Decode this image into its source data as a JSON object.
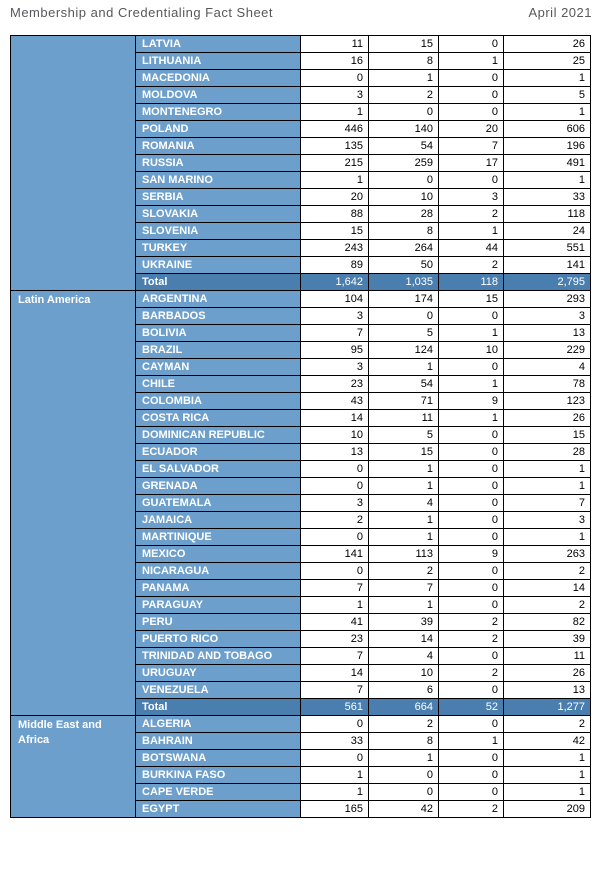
{
  "header": {
    "title": "Membership and Credentialing Fact Sheet",
    "date": "April 2021"
  },
  "colors": {
    "cell_blue": "#6D9FCC",
    "total_blue": "#4A7EAF",
    "title_gray": "#57585B"
  },
  "sections": [
    {
      "region": "",
      "rows": [
        {
          "country": "LATVIA",
          "values": [
            "11",
            "15",
            "0",
            "26"
          ]
        },
        {
          "country": "LITHUANIA",
          "values": [
            "16",
            "8",
            "1",
            "25"
          ]
        },
        {
          "country": "MACEDONIA",
          "values": [
            "0",
            "1",
            "0",
            "1"
          ]
        },
        {
          "country": "MOLDOVA",
          "values": [
            "3",
            "2",
            "0",
            "5"
          ]
        },
        {
          "country": "MONTENEGRO",
          "values": [
            "1",
            "0",
            "0",
            "1"
          ]
        },
        {
          "country": "POLAND",
          "values": [
            "446",
            "140",
            "20",
            "606"
          ]
        },
        {
          "country": "ROMANIA",
          "values": [
            "135",
            "54",
            "7",
            "196"
          ]
        },
        {
          "country": "RUSSIA",
          "values": [
            "215",
            "259",
            "17",
            "491"
          ]
        },
        {
          "country": "SAN MARINO",
          "values": [
            "1",
            "0",
            "0",
            "1"
          ]
        },
        {
          "country": "SERBIA",
          "values": [
            "20",
            "10",
            "3",
            "33"
          ]
        },
        {
          "country": "SLOVAKIA",
          "values": [
            "88",
            "28",
            "2",
            "118"
          ]
        },
        {
          "country": "SLOVENIA",
          "values": [
            "15",
            "8",
            "1",
            "24"
          ]
        },
        {
          "country": "TURKEY",
          "values": [
            "243",
            "264",
            "44",
            "551"
          ]
        },
        {
          "country": "UKRAINE",
          "values": [
            "89",
            "50",
            "2",
            "141"
          ]
        }
      ],
      "total": {
        "label": "Total",
        "values": [
          "1,642",
          "1,035",
          "118",
          "2,795"
        ]
      }
    },
    {
      "region": "Latin America",
      "rows": [
        {
          "country": "ARGENTINA",
          "values": [
            "104",
            "174",
            "15",
            "293"
          ]
        },
        {
          "country": "BARBADOS",
          "values": [
            "3",
            "0",
            "0",
            "3"
          ]
        },
        {
          "country": "BOLIVIA",
          "values": [
            "7",
            "5",
            "1",
            "13"
          ]
        },
        {
          "country": "BRAZIL",
          "values": [
            "95",
            "124",
            "10",
            "229"
          ]
        },
        {
          "country": "CAYMAN",
          "values": [
            "3",
            "1",
            "0",
            "4"
          ]
        },
        {
          "country": "CHILE",
          "values": [
            "23",
            "54",
            "1",
            "78"
          ]
        },
        {
          "country": "COLOMBIA",
          "values": [
            "43",
            "71",
            "9",
            "123"
          ]
        },
        {
          "country": "COSTA RICA",
          "values": [
            "14",
            "11",
            "1",
            "26"
          ]
        },
        {
          "country": "DOMINICAN REPUBLIC",
          "values": [
            "10",
            "5",
            "0",
            "15"
          ]
        },
        {
          "country": "ECUADOR",
          "values": [
            "13",
            "15",
            "0",
            "28"
          ]
        },
        {
          "country": "EL SALVADOR",
          "values": [
            "0",
            "1",
            "0",
            "1"
          ]
        },
        {
          "country": "GRENADA",
          "values": [
            "0",
            "1",
            "0",
            "1"
          ]
        },
        {
          "country": "GUATEMALA",
          "values": [
            "3",
            "4",
            "0",
            "7"
          ]
        },
        {
          "country": "JAMAICA",
          "values": [
            "2",
            "1",
            "0",
            "3"
          ]
        },
        {
          "country": "MARTINIQUE",
          "values": [
            "0",
            "1",
            "0",
            "1"
          ]
        },
        {
          "country": "MEXICO",
          "values": [
            "141",
            "113",
            "9",
            "263"
          ]
        },
        {
          "country": "NICARAGUA",
          "values": [
            "0",
            "2",
            "0",
            "2"
          ]
        },
        {
          "country": "PANAMA",
          "values": [
            "7",
            "7",
            "0",
            "14"
          ]
        },
        {
          "country": "PARAGUAY",
          "values": [
            "1",
            "1",
            "0",
            "2"
          ]
        },
        {
          "country": "PERU",
          "values": [
            "41",
            "39",
            "2",
            "82"
          ]
        },
        {
          "country": "PUERTO RICO",
          "values": [
            "23",
            "14",
            "2",
            "39"
          ]
        },
        {
          "country": "TRINIDAD AND TOBAGO",
          "values": [
            "7",
            "4",
            "0",
            "11"
          ]
        },
        {
          "country": "URUGUAY",
          "values": [
            "14",
            "10",
            "2",
            "26"
          ]
        },
        {
          "country": "VENEZUELA",
          "values": [
            "7",
            "6",
            "0",
            "13"
          ]
        }
      ],
      "total": {
        "label": "Total",
        "values": [
          "561",
          "664",
          "52",
          "1,277"
        ]
      }
    },
    {
      "region": "Middle East and Africa",
      "rows": [
        {
          "country": "ALGERIA",
          "values": [
            "0",
            "2",
            "0",
            "2"
          ]
        },
        {
          "country": "BAHRAIN",
          "values": [
            "33",
            "8",
            "1",
            "42"
          ]
        },
        {
          "country": "BOTSWANA",
          "values": [
            "0",
            "1",
            "0",
            "1"
          ]
        },
        {
          "country": "BURKINA FASO",
          "values": [
            "1",
            "0",
            "0",
            "1"
          ]
        },
        {
          "country": "CAPE VERDE",
          "values": [
            "1",
            "0",
            "0",
            "1"
          ]
        },
        {
          "country": "EGYPT",
          "values": [
            "165",
            "42",
            "2",
            "209"
          ]
        }
      ],
      "total": null
    }
  ]
}
